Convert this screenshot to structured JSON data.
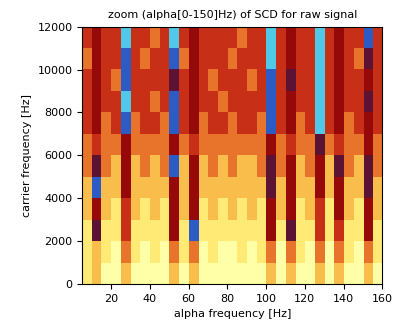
{
  "chart_data": {
    "type": "heatmap",
    "title": "zoom (alpha[0-150]Hz) of SCD for raw signal",
    "x_label": "alpha frequency [Hz]",
    "y_label": "carrier frequency [Hz]",
    "xlim": [
      5,
      160
    ],
    "ylim": [
      0,
      12000
    ],
    "xticks": [
      20,
      40,
      60,
      80,
      100,
      120,
      140,
      160
    ],
    "yticks": [
      0,
      2000,
      4000,
      6000,
      8000,
      10000,
      12000
    ],
    "cells": [
      [
        2,
        3,
        1,
        1,
        3,
        1,
        1,
        1,
        1,
        3,
        1,
        3,
        1,
        1,
        1,
        1,
        1,
        1,
        1,
        3,
        1,
        3,
        1,
        1,
        3,
        1,
        3,
        1,
        1,
        3,
        1
      ],
      [
        2,
        3,
        2,
        1,
        4,
        2,
        1,
        2,
        1,
        4,
        2,
        4,
        1,
        2,
        1,
        1,
        2,
        1,
        2,
        4,
        1,
        4,
        2,
        1,
        4,
        1,
        4,
        2,
        1,
        4,
        2
      ],
      [
        2,
        7,
        2,
        2,
        5,
        2,
        2,
        2,
        2,
        6,
        2,
        8,
        2,
        2,
        2,
        2,
        2,
        2,
        2,
        6,
        2,
        7,
        2,
        2,
        5,
        2,
        5,
        2,
        2,
        6,
        2
      ],
      [
        3,
        6,
        3,
        2,
        5,
        3,
        2,
        3,
        2,
        6,
        3,
        6,
        2,
        3,
        2,
        3,
        2,
        3,
        2,
        6,
        3,
        6,
        2,
        3,
        5,
        2,
        6,
        3,
        2,
        6,
        3
      ],
      [
        3,
        8,
        3,
        3,
        6,
        3,
        3,
        3,
        3,
        6,
        3,
        6,
        3,
        3,
        3,
        3,
        3,
        3,
        3,
        7,
        3,
        6,
        3,
        3,
        6,
        3,
        6,
        3,
        3,
        7,
        3
      ],
      [
        4,
        7,
        4,
        3,
        6,
        3,
        4,
        3,
        4,
        8,
        3,
        6,
        3,
        4,
        3,
        4,
        3,
        3,
        4,
        7,
        4,
        6,
        3,
        4,
        6,
        3,
        7,
        4,
        3,
        7,
        4
      ],
      [
        4,
        5,
        4,
        4,
        6,
        4,
        4,
        4,
        4,
        6,
        4,
        5,
        4,
        4,
        4,
        4,
        4,
        4,
        4,
        6,
        4,
        5,
        4,
        4,
        7,
        4,
        5,
        4,
        4,
        6,
        4
      ],
      [
        5,
        6,
        4,
        5,
        8,
        4,
        5,
        5,
        4,
        8,
        5,
        6,
        4,
        5,
        5,
        4,
        5,
        5,
        4,
        8,
        5,
        6,
        4,
        5,
        9,
        5,
        6,
        4,
        5,
        6,
        5
      ],
      [
        5,
        6,
        5,
        5,
        9,
        5,
        5,
        4,
        5,
        8,
        5,
        6,
        5,
        5,
        4,
        5,
        5,
        5,
        5,
        8,
        5,
        6,
        5,
        5,
        9,
        5,
        6,
        5,
        5,
        7,
        5
      ],
      [
        5,
        6,
        5,
        4,
        8,
        5,
        5,
        5,
        5,
        7,
        5,
        6,
        5,
        4,
        5,
        5,
        5,
        4,
        5,
        8,
        5,
        7,
        5,
        5,
        9,
        5,
        6,
        5,
        5,
        6,
        5
      ],
      [
        4,
        6,
        5,
        5,
        8,
        5,
        4,
        5,
        5,
        8,
        4,
        6,
        5,
        5,
        5,
        4,
        5,
        5,
        5,
        9,
        5,
        6,
        5,
        5,
        9,
        5,
        6,
        5,
        4,
        7,
        5
      ],
      [
        5,
        6,
        5,
        5,
        9,
        5,
        5,
        4,
        5,
        9,
        5,
        6,
        5,
        5,
        5,
        5,
        4,
        5,
        5,
        9,
        5,
        6,
        5,
        5,
        9,
        5,
        6,
        5,
        5,
        8,
        5
      ]
    ]
  }
}
